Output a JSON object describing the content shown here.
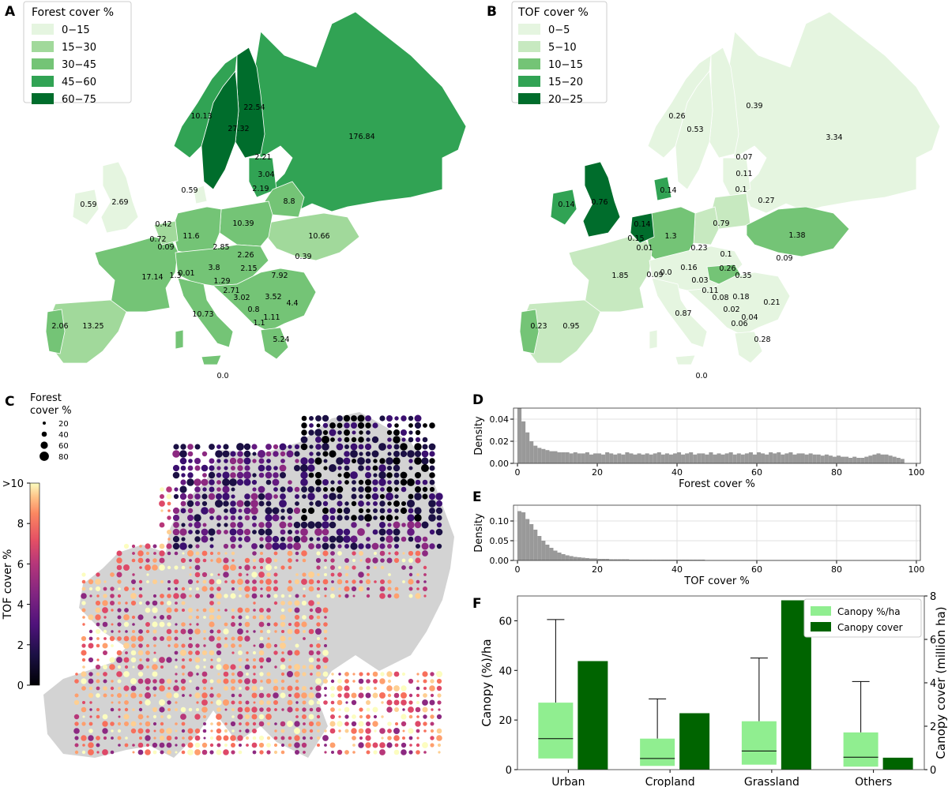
{
  "panels": {
    "A": {
      "letter": "A",
      "legend_title": "Forest cover %",
      "legend_items": [
        {
          "label": "0−15",
          "color": "#e5f5e0"
        },
        {
          "label": "15−30",
          "color": "#a1d99b"
        },
        {
          "label": "30−45",
          "color": "#74c476"
        },
        {
          "label": "45−60",
          "color": "#31a354"
        },
        {
          "label": "60−75",
          "color": "#006d2c"
        }
      ],
      "values": [
        "176.84",
        "22.54",
        "27.32",
        "10.13",
        "2.21",
        "3.04",
        "2.19",
        "8.8",
        "0.59",
        "0.59",
        "2.69",
        "0.42",
        "0.72",
        "0.09",
        "11.6",
        "10.39",
        "10.66",
        "2.85",
        "2.26",
        "0.39",
        "0.01",
        "1.3",
        "3.8",
        "1.29",
        "2.15",
        "7.92",
        "17.14",
        "2.71",
        "3.02",
        "3.52",
        "0.8",
        "4.4",
        "1.11",
        "1.1",
        "10.73",
        "2.06",
        "13.25",
        "5.24",
        "0.0"
      ]
    },
    "B": {
      "letter": "B",
      "legend_title": "TOF cover %",
      "legend_items": [
        {
          "label": "0−5",
          "color": "#e5f5e0"
        },
        {
          "label": "5−10",
          "color": "#c7e9c0"
        },
        {
          "label": "10−15",
          "color": "#74c476"
        },
        {
          "label": "15−20",
          "color": "#31a354"
        },
        {
          "label": "20−25",
          "color": "#006d2c"
        }
      ],
      "values": [
        "0.39",
        "0.26",
        "0.53",
        "3.34",
        "0.07",
        "0.11",
        "0.1",
        "0.27",
        "0.14",
        "0.76",
        "0.14",
        "0.14",
        "0.15",
        "0.01",
        "1.3",
        "0.79",
        "1.38",
        "0.23",
        "0.1",
        "0.09",
        "0.16",
        "0.26",
        "1.85",
        "0.09",
        "0.0",
        "0.35",
        "0.03",
        "0.11",
        "0.08",
        "0.18",
        "0.21",
        "0.02",
        "0.87",
        "0.04",
        "0.06",
        "0.23",
        "0.95",
        "0.28",
        "0.0"
      ]
    },
    "C": {
      "letter": "C",
      "size_legend_title": "Forest\ncover %",
      "size_legend": [
        "20",
        "40",
        "60",
        "80"
      ],
      "colorbar_label": "TOF cover %",
      "colorbar_ticks": [
        "0",
        "2",
        "4",
        "6",
        "8",
        ">10"
      ]
    },
    "D": {
      "letter": "D"
    },
    "E": {
      "letter": "E"
    },
    "F": {
      "letter": "F"
    }
  },
  "chart_data": [
    {
      "id": "D",
      "type": "bar",
      "subtype": "histogram",
      "xlabel": "Forest cover %",
      "ylabel": "Density",
      "xlim": [
        0,
        100
      ],
      "ylim": [
        0,
        0.05
      ],
      "xticks": [
        "0",
        "20",
        "40",
        "60",
        "80",
        "100"
      ],
      "yticks": [
        "0.00",
        "0.02",
        "0.04"
      ],
      "grid": true,
      "bin_width": 1,
      "bin_start": 0,
      "values": [
        0.05,
        0.038,
        0.028,
        0.02,
        0.016,
        0.014,
        0.013,
        0.012,
        0.011,
        0.011,
        0.01,
        0.01,
        0.01,
        0.009,
        0.01,
        0.009,
        0.009,
        0.01,
        0.008,
        0.009,
        0.009,
        0.008,
        0.01,
        0.009,
        0.008,
        0.009,
        0.008,
        0.01,
        0.009,
        0.008,
        0.009,
        0.008,
        0.009,
        0.008,
        0.009,
        0.01,
        0.008,
        0.009,
        0.008,
        0.009,
        0.01,
        0.008,
        0.009,
        0.01,
        0.008,
        0.009,
        0.009,
        0.008,
        0.01,
        0.008,
        0.009,
        0.008,
        0.009,
        0.01,
        0.008,
        0.009,
        0.008,
        0.009,
        0.01,
        0.008,
        0.01,
        0.009,
        0.008,
        0.01,
        0.009,
        0.01,
        0.008,
        0.009,
        0.01,
        0.008,
        0.009,
        0.009,
        0.008,
        0.009,
        0.008,
        0.008,
        0.007,
        0.008,
        0.007,
        0.006,
        0.007,
        0.006,
        0.006,
        0.005,
        0.006,
        0.005,
        0.005,
        0.006,
        0.007,
        0.008,
        0.009,
        0.008,
        0.008,
        0.007,
        0.006,
        0.005,
        0.004
      ]
    },
    {
      "id": "E",
      "type": "bar",
      "subtype": "histogram",
      "xlabel": "TOF cover %",
      "ylabel": "Density",
      "xlim": [
        0,
        100
      ],
      "ylim": [
        0,
        0.14
      ],
      "xticks": [
        "0",
        "20",
        "40",
        "60",
        "80",
        "100"
      ],
      "yticks": [
        "0.00",
        "0.05",
        "0.10"
      ],
      "grid": true,
      "bin_width": 1,
      "bin_start": 0,
      "values": [
        0.125,
        0.122,
        0.105,
        0.092,
        0.078,
        0.062,
        0.05,
        0.04,
        0.032,
        0.025,
        0.02,
        0.016,
        0.013,
        0.011,
        0.009,
        0.008,
        0.007,
        0.006,
        0.005,
        0.005,
        0.004,
        0.004,
        0.004,
        0.003,
        0.003,
        0.003,
        0.003,
        0.003,
        0.002,
        0.002,
        0.002,
        0.002,
        0.002,
        0.002,
        0.002,
        0.002,
        0.002,
        0.002,
        0.002,
        0.002,
        0.002,
        0.002,
        0.002,
        0.002,
        0.002,
        0.002,
        0.002,
        0.001,
        0.001,
        0.001,
        0.001,
        0.001,
        0.001,
        0.001,
        0.001,
        0.001,
        0.001,
        0.001,
        0.001,
        0.001,
        0.001,
        0.001,
        0.001,
        0.001,
        0.001,
        0.001,
        0.001,
        0.001,
        0.001,
        0.001,
        0.001,
        0.001,
        0.001,
        0.001,
        0.001,
        0.001,
        0.001,
        0.001,
        0.001,
        0.001,
        0.001,
        0.001,
        0.001,
        0.001,
        0.001,
        0.001,
        0.001,
        0.001,
        0.001,
        0.001,
        0.001,
        0.001,
        0.001,
        0.001,
        0.001,
        0.001
      ]
    },
    {
      "id": "F",
      "type": "bar",
      "subtype": "boxplot_and_bar",
      "categories": [
        "Urban",
        "Cropland",
        "Grassland",
        "Others"
      ],
      "ylabel": "Canopy (%)/ha",
      "y2label": "Canopy cover (million ha)",
      "ylim": [
        0,
        70
      ],
      "y2lim": [
        0,
        8
      ],
      "yticks": [
        "0",
        "20",
        "40",
        "60"
      ],
      "y2ticks": [
        "0",
        "2",
        "4",
        "6",
        "8"
      ],
      "legend_position": "top-right",
      "series": [
        {
          "name": "Canopy %/ha",
          "type": "box",
          "color": "#90ee90",
          "box": [
            {
              "whisker_low": 0,
              "q1": 4.5,
              "median": 12.5,
              "q3": 27,
              "whisker_high": 60.5
            },
            {
              "whisker_low": 0,
              "q1": 1.5,
              "median": 4.5,
              "q3": 12.5,
              "whisker_high": 28.5
            },
            {
              "whisker_low": 0,
              "q1": 2,
              "median": 7.5,
              "q3": 19.5,
              "whisker_high": 45
            },
            {
              "whisker_low": 0,
              "q1": 1.2,
              "median": 5,
              "q3": 15,
              "whisker_high": 35.5
            }
          ]
        },
        {
          "name": "Canopy cover",
          "type": "bar",
          "axis": "y2",
          "color": "#006400",
          "values": [
            5.0,
            2.6,
            7.8,
            0.55
          ]
        }
      ]
    }
  ]
}
